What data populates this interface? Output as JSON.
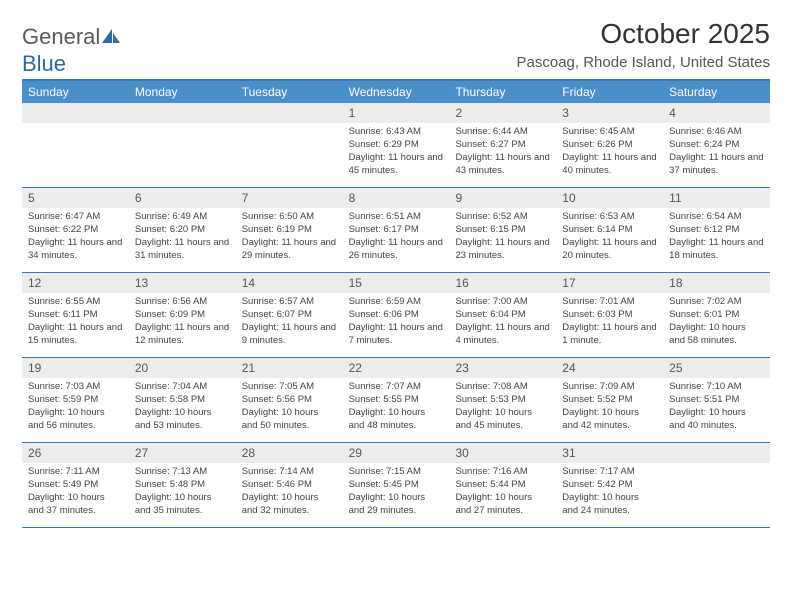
{
  "logo": {
    "word1": "General",
    "word2": "Blue"
  },
  "title": "October 2025",
  "location": "Pascoag, Rhode Island, United States",
  "colors": {
    "header_bg": "#4a8fc9",
    "header_border": "#3a7ab8",
    "daynum_bg": "#ececec",
    "text": "#444444",
    "logo_gray": "#5a5a5a",
    "logo_blue": "#2d6aa8"
  },
  "day_names": [
    "Sunday",
    "Monday",
    "Tuesday",
    "Wednesday",
    "Thursday",
    "Friday",
    "Saturday"
  ],
  "weeks": [
    [
      {
        "n": "",
        "sr": "",
        "ss": "",
        "dl": ""
      },
      {
        "n": "",
        "sr": "",
        "ss": "",
        "dl": ""
      },
      {
        "n": "",
        "sr": "",
        "ss": "",
        "dl": ""
      },
      {
        "n": "1",
        "sr": "Sunrise: 6:43 AM",
        "ss": "Sunset: 6:29 PM",
        "dl": "Daylight: 11 hours and 45 minutes."
      },
      {
        "n": "2",
        "sr": "Sunrise: 6:44 AM",
        "ss": "Sunset: 6:27 PM",
        "dl": "Daylight: 11 hours and 43 minutes."
      },
      {
        "n": "3",
        "sr": "Sunrise: 6:45 AM",
        "ss": "Sunset: 6:26 PM",
        "dl": "Daylight: 11 hours and 40 minutes."
      },
      {
        "n": "4",
        "sr": "Sunrise: 6:46 AM",
        "ss": "Sunset: 6:24 PM",
        "dl": "Daylight: 11 hours and 37 minutes."
      }
    ],
    [
      {
        "n": "5",
        "sr": "Sunrise: 6:47 AM",
        "ss": "Sunset: 6:22 PM",
        "dl": "Daylight: 11 hours and 34 minutes."
      },
      {
        "n": "6",
        "sr": "Sunrise: 6:49 AM",
        "ss": "Sunset: 6:20 PM",
        "dl": "Daylight: 11 hours and 31 minutes."
      },
      {
        "n": "7",
        "sr": "Sunrise: 6:50 AM",
        "ss": "Sunset: 6:19 PM",
        "dl": "Daylight: 11 hours and 29 minutes."
      },
      {
        "n": "8",
        "sr": "Sunrise: 6:51 AM",
        "ss": "Sunset: 6:17 PM",
        "dl": "Daylight: 11 hours and 26 minutes."
      },
      {
        "n": "9",
        "sr": "Sunrise: 6:52 AM",
        "ss": "Sunset: 6:15 PM",
        "dl": "Daylight: 11 hours and 23 minutes."
      },
      {
        "n": "10",
        "sr": "Sunrise: 6:53 AM",
        "ss": "Sunset: 6:14 PM",
        "dl": "Daylight: 11 hours and 20 minutes."
      },
      {
        "n": "11",
        "sr": "Sunrise: 6:54 AM",
        "ss": "Sunset: 6:12 PM",
        "dl": "Daylight: 11 hours and 18 minutes."
      }
    ],
    [
      {
        "n": "12",
        "sr": "Sunrise: 6:55 AM",
        "ss": "Sunset: 6:11 PM",
        "dl": "Daylight: 11 hours and 15 minutes."
      },
      {
        "n": "13",
        "sr": "Sunrise: 6:56 AM",
        "ss": "Sunset: 6:09 PM",
        "dl": "Daylight: 11 hours and 12 minutes."
      },
      {
        "n": "14",
        "sr": "Sunrise: 6:57 AM",
        "ss": "Sunset: 6:07 PM",
        "dl": "Daylight: 11 hours and 9 minutes."
      },
      {
        "n": "15",
        "sr": "Sunrise: 6:59 AM",
        "ss": "Sunset: 6:06 PM",
        "dl": "Daylight: 11 hours and 7 minutes."
      },
      {
        "n": "16",
        "sr": "Sunrise: 7:00 AM",
        "ss": "Sunset: 6:04 PM",
        "dl": "Daylight: 11 hours and 4 minutes."
      },
      {
        "n": "17",
        "sr": "Sunrise: 7:01 AM",
        "ss": "Sunset: 6:03 PM",
        "dl": "Daylight: 11 hours and 1 minute."
      },
      {
        "n": "18",
        "sr": "Sunrise: 7:02 AM",
        "ss": "Sunset: 6:01 PM",
        "dl": "Daylight: 10 hours and 58 minutes."
      }
    ],
    [
      {
        "n": "19",
        "sr": "Sunrise: 7:03 AM",
        "ss": "Sunset: 5:59 PM",
        "dl": "Daylight: 10 hours and 56 minutes."
      },
      {
        "n": "20",
        "sr": "Sunrise: 7:04 AM",
        "ss": "Sunset: 5:58 PM",
        "dl": "Daylight: 10 hours and 53 minutes."
      },
      {
        "n": "21",
        "sr": "Sunrise: 7:05 AM",
        "ss": "Sunset: 5:56 PM",
        "dl": "Daylight: 10 hours and 50 minutes."
      },
      {
        "n": "22",
        "sr": "Sunrise: 7:07 AM",
        "ss": "Sunset: 5:55 PM",
        "dl": "Daylight: 10 hours and 48 minutes."
      },
      {
        "n": "23",
        "sr": "Sunrise: 7:08 AM",
        "ss": "Sunset: 5:53 PM",
        "dl": "Daylight: 10 hours and 45 minutes."
      },
      {
        "n": "24",
        "sr": "Sunrise: 7:09 AM",
        "ss": "Sunset: 5:52 PM",
        "dl": "Daylight: 10 hours and 42 minutes."
      },
      {
        "n": "25",
        "sr": "Sunrise: 7:10 AM",
        "ss": "Sunset: 5:51 PM",
        "dl": "Daylight: 10 hours and 40 minutes."
      }
    ],
    [
      {
        "n": "26",
        "sr": "Sunrise: 7:11 AM",
        "ss": "Sunset: 5:49 PM",
        "dl": "Daylight: 10 hours and 37 minutes."
      },
      {
        "n": "27",
        "sr": "Sunrise: 7:13 AM",
        "ss": "Sunset: 5:48 PM",
        "dl": "Daylight: 10 hours and 35 minutes."
      },
      {
        "n": "28",
        "sr": "Sunrise: 7:14 AM",
        "ss": "Sunset: 5:46 PM",
        "dl": "Daylight: 10 hours and 32 minutes."
      },
      {
        "n": "29",
        "sr": "Sunrise: 7:15 AM",
        "ss": "Sunset: 5:45 PM",
        "dl": "Daylight: 10 hours and 29 minutes."
      },
      {
        "n": "30",
        "sr": "Sunrise: 7:16 AM",
        "ss": "Sunset: 5:44 PM",
        "dl": "Daylight: 10 hours and 27 minutes."
      },
      {
        "n": "31",
        "sr": "Sunrise: 7:17 AM",
        "ss": "Sunset: 5:42 PM",
        "dl": "Daylight: 10 hours and 24 minutes."
      },
      {
        "n": "",
        "sr": "",
        "ss": "",
        "dl": ""
      }
    ]
  ]
}
